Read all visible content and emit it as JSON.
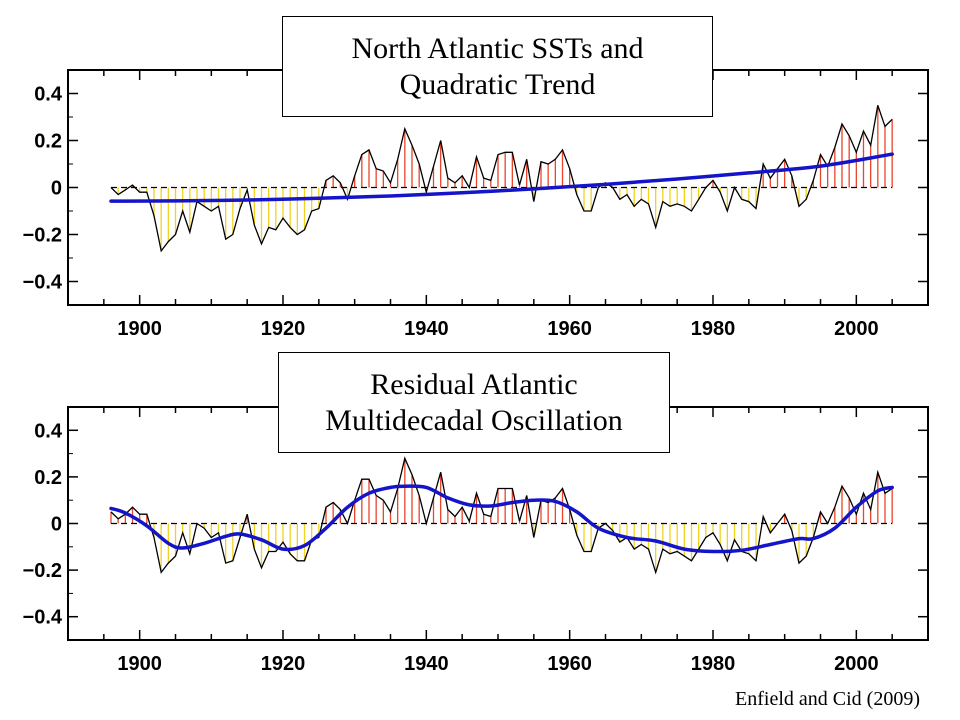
{
  "colors": {
    "positive": "#e8452a",
    "negative": "#f2d21c",
    "raw": "#000000",
    "smooth": "#1414c8",
    "frame": "#000000"
  },
  "credit": "Enfield and Cid (2009)",
  "chart_data": [
    {
      "type": "line",
      "title_lines": [
        "North Atlantic SSTs and",
        "Quadratic Trend"
      ],
      "xlabel": "",
      "ylabel": "",
      "xlim": [
        1890,
        2010
      ],
      "ylim": [
        -0.5,
        0.5
      ],
      "xticks": [
        1900,
        1920,
        1940,
        1960,
        1980,
        2000
      ],
      "yticks": [
        0.4,
        0.2,
        0,
        -0.2,
        -0.4
      ],
      "ytick_labels": [
        "0.4",
        "0.2",
        "0",
        "−0.2",
        "−0.4"
      ],
      "grid": false,
      "series": [
        {
          "role": "raw",
          "x": [
            1896,
            1897,
            1898,
            1899,
            1900,
            1901,
            1902,
            1903,
            1904,
            1905,
            1906,
            1907,
            1908,
            1909,
            1910,
            1911,
            1912,
            1913,
            1914,
            1915,
            1916,
            1917,
            1918,
            1919,
            1920,
            1921,
            1922,
            1923,
            1924,
            1925,
            1926,
            1927,
            1928,
            1929,
            1930,
            1931,
            1932,
            1933,
            1934,
            1935,
            1936,
            1937,
            1938,
            1939,
            1940,
            1941,
            1942,
            1943,
            1944,
            1945,
            1946,
            1947,
            1948,
            1949,
            1950,
            1951,
            1952,
            1953,
            1954,
            1955,
            1956,
            1957,
            1958,
            1959,
            1960,
            1961,
            1962,
            1963,
            1964,
            1965,
            1966,
            1967,
            1968,
            1969,
            1970,
            1971,
            1972,
            1973,
            1974,
            1975,
            1976,
            1977,
            1978,
            1979,
            1980,
            1981,
            1982,
            1983,
            1984,
            1985,
            1986,
            1987,
            1988,
            1989,
            1990,
            1991,
            1992,
            1993,
            1994,
            1995,
            1996,
            1997,
            1998,
            1999,
            2000,
            2001,
            2002,
            2003,
            2004,
            2005
          ],
          "y": [
            0.0,
            -0.03,
            -0.01,
            0.01,
            -0.02,
            -0.02,
            -0.12,
            -0.27,
            -0.23,
            -0.2,
            -0.1,
            -0.19,
            -0.06,
            -0.08,
            -0.1,
            -0.08,
            -0.22,
            -0.2,
            -0.09,
            -0.01,
            -0.16,
            -0.24,
            -0.17,
            -0.18,
            -0.13,
            -0.17,
            -0.2,
            -0.18,
            -0.1,
            -0.09,
            0.03,
            0.05,
            0.02,
            -0.05,
            0.05,
            0.14,
            0.16,
            0.08,
            0.07,
            0.02,
            0.12,
            0.25,
            0.18,
            0.1,
            -0.02,
            0.09,
            0.2,
            0.04,
            0.02,
            0.05,
            0.0,
            0.13,
            0.04,
            0.03,
            0.14,
            0.15,
            0.15,
            0.01,
            0.12,
            -0.06,
            0.11,
            0.1,
            0.12,
            0.16,
            0.08,
            -0.03,
            -0.1,
            -0.1,
            0.0,
            0.02,
            0.0,
            -0.05,
            -0.03,
            -0.08,
            -0.05,
            -0.07,
            -0.17,
            -0.06,
            -0.08,
            -0.07,
            -0.08,
            -0.1,
            -0.05,
            0.0,
            0.03,
            -0.02,
            -0.1,
            0.0,
            -0.05,
            -0.06,
            -0.09,
            0.1,
            0.04,
            0.08,
            0.12,
            0.05,
            -0.08,
            -0.05,
            0.03,
            0.14,
            0.09,
            0.17,
            0.27,
            0.22,
            0.15,
            0.24,
            0.18,
            0.35,
            0.26,
            0.29
          ]
        },
        {
          "role": "trend",
          "name": "",
          "x": [
            1896,
            1905,
            1915,
            1925,
            1935,
            1945,
            1955,
            1965,
            1975,
            1985,
            1995,
            2005
          ],
          "y": [
            -0.058,
            -0.057,
            -0.053,
            -0.046,
            -0.036,
            -0.022,
            -0.006,
            0.013,
            0.036,
            0.062,
            0.091,
            0.142
          ]
        }
      ]
    },
    {
      "type": "line",
      "title_lines": [
        "Residual Atlantic",
        "Multidecadal Oscillation"
      ],
      "xlabel": "",
      "ylabel": "",
      "xlim": [
        1890,
        2010
      ],
      "ylim": [
        -0.5,
        0.5
      ],
      "xticks": [
        1900,
        1920,
        1940,
        1960,
        1980,
        2000
      ],
      "yticks": [
        0.4,
        0.2,
        0,
        -0.2,
        -0.4
      ],
      "ytick_labels": [
        "0.4",
        "0.2",
        "0",
        "−0.2",
        "−0.4"
      ],
      "grid": false,
      "series": [
        {
          "role": "raw",
          "x": [
            1896,
            1897,
            1898,
            1899,
            1900,
            1901,
            1902,
            1903,
            1904,
            1905,
            1906,
            1907,
            1908,
            1909,
            1910,
            1911,
            1912,
            1913,
            1914,
            1915,
            1916,
            1917,
            1918,
            1919,
            1920,
            1921,
            1922,
            1923,
            1924,
            1925,
            1926,
            1927,
            1928,
            1929,
            1930,
            1931,
            1932,
            1933,
            1934,
            1935,
            1936,
            1937,
            1938,
            1939,
            1940,
            1941,
            1942,
            1943,
            1944,
            1945,
            1946,
            1947,
            1948,
            1949,
            1950,
            1951,
            1952,
            1953,
            1954,
            1955,
            1956,
            1957,
            1958,
            1959,
            1960,
            1961,
            1962,
            1963,
            1964,
            1965,
            1966,
            1967,
            1968,
            1969,
            1970,
            1971,
            1972,
            1973,
            1974,
            1975,
            1976,
            1977,
            1978,
            1979,
            1980,
            1981,
            1982,
            1983,
            1984,
            1985,
            1986,
            1987,
            1988,
            1989,
            1990,
            1991,
            1992,
            1993,
            1994,
            1995,
            1996,
            1997,
            1998,
            1999,
            2000,
            2001,
            2002,
            2003,
            2004,
            2005
          ],
          "y": [
            0.05,
            0.02,
            0.04,
            0.07,
            0.04,
            0.04,
            -0.06,
            -0.21,
            -0.17,
            -0.14,
            -0.04,
            -0.13,
            0.0,
            -0.02,
            -0.06,
            -0.04,
            -0.17,
            -0.16,
            -0.06,
            0.04,
            -0.11,
            -0.19,
            -0.12,
            -0.12,
            -0.08,
            -0.13,
            -0.16,
            -0.16,
            -0.07,
            -0.06,
            0.07,
            0.09,
            0.06,
            0.0,
            0.1,
            0.19,
            0.19,
            0.12,
            0.1,
            0.05,
            0.15,
            0.28,
            0.21,
            0.12,
            0.0,
            0.11,
            0.22,
            0.06,
            0.03,
            0.07,
            0.01,
            0.13,
            0.04,
            0.03,
            0.15,
            0.15,
            0.15,
            0.01,
            0.12,
            -0.06,
            0.1,
            0.09,
            0.11,
            0.15,
            0.06,
            -0.05,
            -0.12,
            -0.12,
            -0.02,
            0.0,
            -0.03,
            -0.08,
            -0.06,
            -0.11,
            -0.09,
            -0.11,
            -0.21,
            -0.11,
            -0.13,
            -0.12,
            -0.14,
            -0.16,
            -0.11,
            -0.06,
            -0.04,
            -0.09,
            -0.16,
            -0.07,
            -0.12,
            -0.13,
            -0.16,
            0.03,
            -0.04,
            0.0,
            0.04,
            -0.03,
            -0.17,
            -0.14,
            -0.06,
            0.05,
            0.0,
            0.07,
            0.16,
            0.11,
            0.04,
            0.13,
            0.06,
            0.22,
            0.13,
            0.15
          ]
        },
        {
          "role": "smooth",
          "name": "",
          "x": [
            1896,
            1898,
            1901,
            1904,
            1906,
            1909,
            1912,
            1914,
            1917,
            1920,
            1923,
            1926,
            1929,
            1932,
            1935,
            1937,
            1940,
            1943,
            1946,
            1949,
            1952,
            1955,
            1958,
            1961,
            1964,
            1968,
            1972,
            1976,
            1980,
            1984,
            1988,
            1992,
            1994,
            1997,
            2000,
            2003,
            2005
          ],
          "y": [
            0.065,
            0.045,
            -0.01,
            -0.085,
            -0.105,
            -0.085,
            -0.055,
            -0.045,
            -0.07,
            -0.11,
            -0.095,
            -0.02,
            0.07,
            0.13,
            0.155,
            0.16,
            0.155,
            0.11,
            0.08,
            0.075,
            0.09,
            0.1,
            0.095,
            0.05,
            -0.02,
            -0.06,
            -0.075,
            -0.11,
            -0.12,
            -0.115,
            -0.09,
            -0.065,
            -0.065,
            -0.02,
            0.07,
            0.14,
            0.155
          ]
        }
      ]
    }
  ]
}
